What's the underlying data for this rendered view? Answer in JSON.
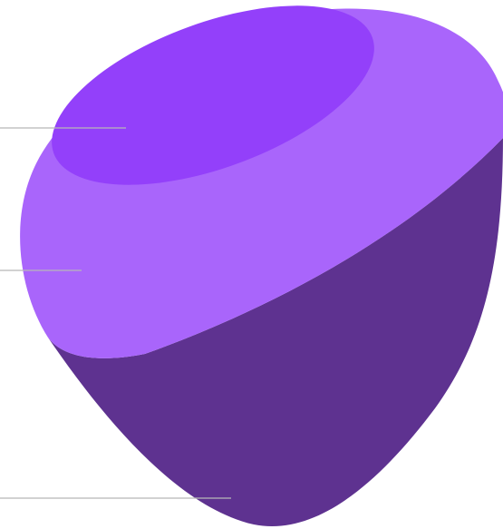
{
  "diagram": {
    "layers": [
      {
        "id": "inner",
        "color": "#9340FA"
      },
      {
        "id": "middle",
        "color": "#A965FB"
      },
      {
        "id": "outer",
        "color": "#5E3290"
      }
    ],
    "callout_color": "#B8B8B8"
  }
}
